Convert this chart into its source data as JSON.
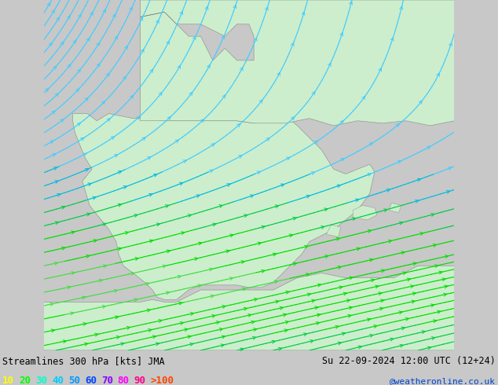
{
  "title_left": "Streamlines 300 hPa [kts] JMA",
  "title_right": "Su 22-09-2024 12:00 UTC (12+24)",
  "credit": "@weatheronline.co.uk",
  "legend_values": [
    "10",
    "20",
    "30",
    "40",
    "50",
    "60",
    "70",
    "80",
    "90",
    ">100"
  ],
  "legend_colors": [
    "#ffff00",
    "#00ff00",
    "#00ffcc",
    "#00ccff",
    "#0099ff",
    "#0044ff",
    "#8800ff",
    "#ff00ff",
    "#ff0088",
    "#ff4400"
  ],
  "bg_color": "#c8c8c8",
  "ocean_color": "#d2d2d2",
  "land_color": "#cceecc",
  "land_color2": "#aaddaa",
  "fig_width": 6.34,
  "fig_height": 4.9,
  "dpi": 100,
  "lon_min": -10.5,
  "lon_max": 6.5,
  "lat_min": 34.0,
  "lat_max": 48.5
}
